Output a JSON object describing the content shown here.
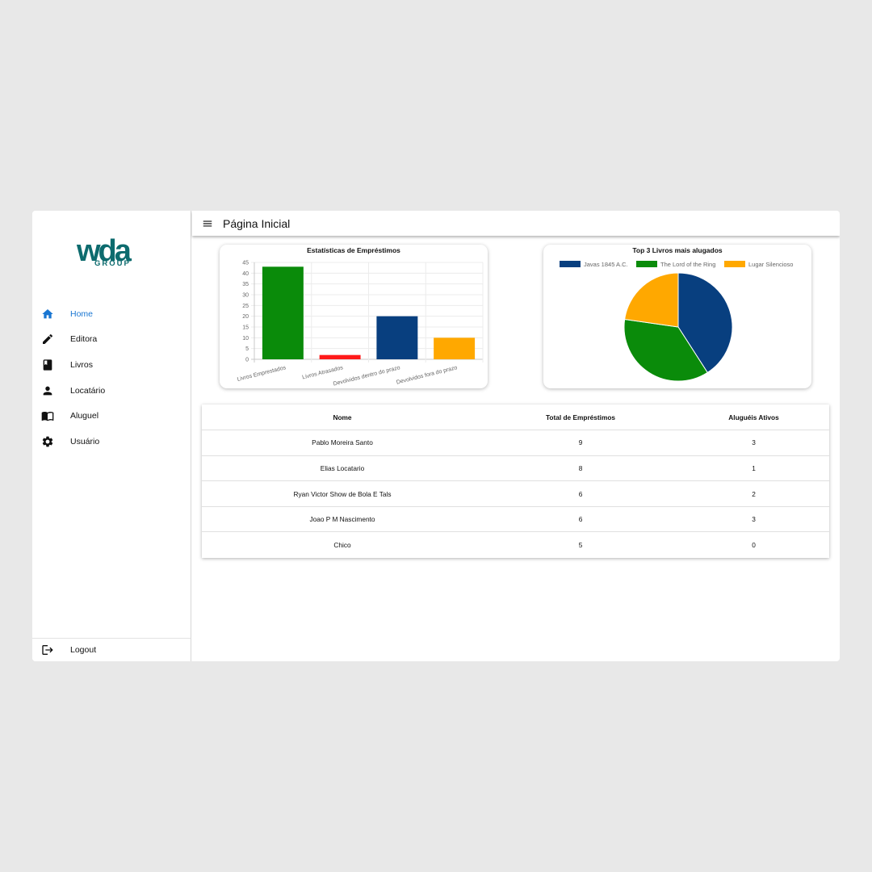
{
  "logo": {
    "main": "wda",
    "sub": "GROUP"
  },
  "header": {
    "title": "Página Inicial"
  },
  "sidebar": {
    "items": [
      {
        "label": "Home",
        "icon": "home-icon",
        "active": true
      },
      {
        "label": "Editora",
        "icon": "pencil-icon",
        "active": false
      },
      {
        "label": "Livros",
        "icon": "book-icon",
        "active": false
      },
      {
        "label": "Locatário",
        "icon": "person-icon",
        "active": false
      },
      {
        "label": "Aluguel",
        "icon": "open-book-icon",
        "active": false
      },
      {
        "label": "Usuário",
        "icon": "gear-icon",
        "active": false
      }
    ],
    "logout_label": "Logout"
  },
  "colors": {
    "green": "#0a8b0a",
    "red": "#ff1a1a",
    "blue": "#083f7f",
    "orange": "#ffa800",
    "accent": "#1976d2",
    "brand": "#0d6b6e"
  },
  "chart_data": [
    {
      "type": "bar",
      "title": "Estatísticas de Empréstimos",
      "categories": [
        "Livros Emprestados",
        "Livros Atrasados",
        "Devolvidos dentro do prazo",
        "Devolvidos fora do prazo"
      ],
      "values": [
        43,
        2,
        20,
        10
      ],
      "colors": [
        "#0a8b0a",
        "#ff1a1a",
        "#083f7f",
        "#ffa800"
      ],
      "y_ticks": [
        0,
        5,
        10,
        15,
        20,
        25,
        30,
        35,
        40,
        45
      ],
      "ylim": [
        0,
        45
      ],
      "grid": true
    },
    {
      "type": "pie",
      "title": "Top 3 Livros mais alugados",
      "labels": [
        "Javas 1845 A.C.",
        "The Lord of the Ring",
        "Lugar Silencioso"
      ],
      "values": [
        9,
        8,
        5
      ],
      "colors": [
        "#083f7f",
        "#0a8b0a",
        "#ffa800"
      ],
      "legend": "top"
    }
  ],
  "table": {
    "headers": [
      "Nome",
      "Total de Empréstimos",
      "Aluguéis Ativos"
    ],
    "rows": [
      [
        "Pablo Moreira Santo",
        "9",
        "3"
      ],
      [
        "Elias Locatario",
        "8",
        "1"
      ],
      [
        "Ryan Victor Show de Bola E Tals",
        "6",
        "2"
      ],
      [
        "Joao P M Nascimento",
        "6",
        "3"
      ],
      [
        "Chico",
        "5",
        "0"
      ]
    ]
  }
}
